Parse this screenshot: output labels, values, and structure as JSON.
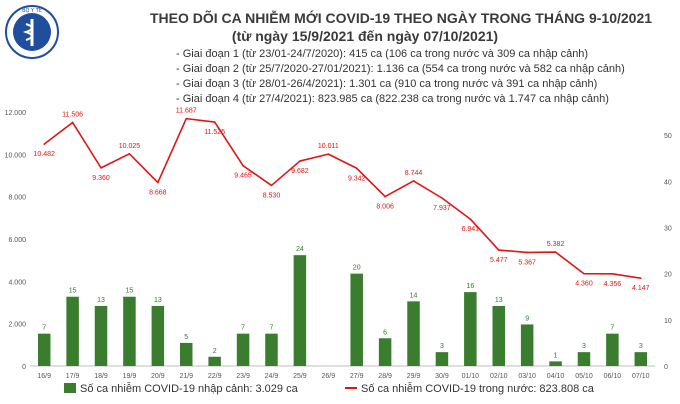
{
  "title_line1": "THEO DÕI CA NHIỄM MỚI COVID-19 THEO NGÀY TRONG THÁNG 9-10/2021",
  "title_line2": "(từ ngày 15/9/2021 đến ngày 07/10/2021)",
  "logo_text": "BỘ Y TẾ",
  "phases": [
    "- Giai đoạn 1 (từ 23/01-24/7/2020): 415 ca (106 ca trong nước và 309 ca nhập cảnh)",
    "- Giai đoạn 2 (từ 25/7/2020-27/01/2021): 1.136 ca (554 ca trong nước và 582 ca nhập cảnh)",
    "- Giai đoạn 3 (từ 28/01-26/4/2021): 1.301 ca (910 ca trong nước và 391 ca nhập cảnh)",
    "- Giai đoạn 4 (từ 27/4/2021): 823.985 ca (822.238 ca trong nước và 1.747 ca nhập cảnh)"
  ],
  "chart_data": {
    "type": "bar",
    "categories": [
      "16/9",
      "17/9",
      "18/9",
      "19/9",
      "20/9",
      "21/9",
      "22/9",
      "23/9",
      "24/9",
      "25/9",
      "26/9",
      "27/9",
      "28/9",
      "29/9",
      "30/9",
      "01/10",
      "02/10",
      "03/10",
      "04/10",
      "05/10",
      "06/10",
      "07/10"
    ],
    "series": [
      {
        "name": "Số ca nhiễm COVID-19 nhập cảnh: 3.029 ca",
        "type": "bar",
        "axis": "right",
        "values": [
          7,
          15,
          13,
          15,
          13,
          5,
          2,
          7,
          7,
          24,
          null,
          20,
          6,
          14,
          3,
          16,
          13,
          9,
          1,
          3,
          7,
          3
        ],
        "labels": [
          "7",
          "15",
          "13",
          "15",
          "13",
          "5",
          "2",
          "7",
          "7",
          "24",
          "",
          "20",
          "6",
          "14",
          "3",
          "16",
          "13",
          "9",
          "1",
          "3",
          "7",
          "3"
        ],
        "color": "#3a7d2e"
      },
      {
        "name": "Số ca nhiễm COVID-19 trong nước: 823.808 ca",
        "type": "line",
        "axis": "left",
        "values": [
          10482,
          11506,
          9360,
          10025,
          8668,
          11687,
          11525,
          9465,
          8530,
          9682,
          10011,
          9342,
          8006,
          8744,
          7937,
          6941,
          5477,
          5367,
          5382,
          4360,
          4356,
          4147
        ],
        "labels": [
          "10.482",
          "11.506",
          "9.360",
          "10.025",
          "8.668",
          "11.687",
          "11.525",
          "9.465",
          "8.530",
          "9.682",
          "10.011",
          "9.342",
          "8.006",
          "8.744",
          "7.937",
          "6.941",
          "5.477",
          "5.367",
          "5.382",
          "4.360",
          "4.356",
          "4.147"
        ],
        "color": "#e01515"
      }
    ],
    "y_left": {
      "range": [
        0,
        12000
      ],
      "ticks": [
        "0",
        "2.000",
        "4.000",
        "6.000",
        "8.000",
        "10.000",
        "12.000"
      ]
    },
    "y_right": {
      "range": [
        0,
        55
      ],
      "ticks": [
        "0",
        "10",
        "20",
        "30",
        "40",
        "50"
      ]
    },
    "grid": false,
    "legend": "bottom"
  }
}
